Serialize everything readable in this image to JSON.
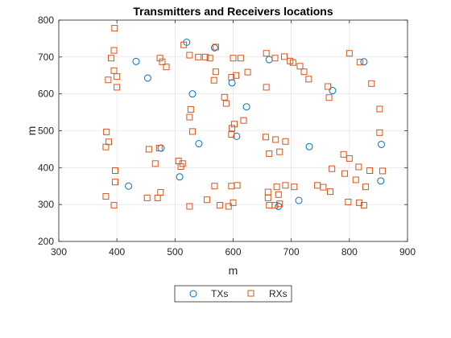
{
  "chart_data": {
    "type": "scatter",
    "title": "Transmitters and Receivers locations",
    "xlabel": "m",
    "ylabel": "m",
    "xlim": [
      300,
      900
    ],
    "ylim": [
      200,
      800
    ],
    "xticks": [
      300,
      400,
      500,
      600,
      700,
      800,
      900
    ],
    "yticks": [
      200,
      300,
      400,
      500,
      600,
      700,
      800
    ],
    "grid": true,
    "legend": {
      "placement": "bottom-center",
      "orientation": "horizontal"
    },
    "series": [
      {
        "name": "TXs",
        "marker": "circle",
        "color": "#0072BD",
        "points": [
          [
            520,
            740
          ],
          [
            568,
            725
          ],
          [
            433,
            688
          ],
          [
            453,
            643
          ],
          [
            530,
            600
          ],
          [
            598,
            630
          ],
          [
            662,
            693
          ],
          [
            825,
            687
          ],
          [
            771,
            609
          ],
          [
            623,
            565
          ],
          [
            606,
            485
          ],
          [
            541,
            465
          ],
          [
            476,
            453
          ],
          [
            731,
            457
          ],
          [
            855,
            463
          ],
          [
            508,
            375
          ],
          [
            420,
            350
          ],
          [
            854,
            364
          ],
          [
            713,
            311
          ],
          [
            678,
            295
          ]
        ]
      },
      {
        "name": "RXs",
        "marker": "square",
        "color": "#D95319",
        "points": [
          [
            396,
            778
          ],
          [
            395,
            718
          ],
          [
            390,
            697
          ],
          [
            395,
            663
          ],
          [
            385,
            638
          ],
          [
            400,
            647
          ],
          [
            400,
            618
          ],
          [
            515,
            733
          ],
          [
            525,
            705
          ],
          [
            540,
            700
          ],
          [
            552,
            700
          ],
          [
            560,
            697
          ],
          [
            570,
            727
          ],
          [
            474,
            697
          ],
          [
            478,
            687
          ],
          [
            485,
            673
          ],
          [
            570,
            660
          ],
          [
            567,
            637
          ],
          [
            597,
            645
          ],
          [
            605,
            650
          ],
          [
            600,
            697
          ],
          [
            613,
            697
          ],
          [
            625,
            659
          ],
          [
            657,
            710
          ],
          [
            672,
            697
          ],
          [
            688,
            701
          ],
          [
            698,
            689
          ],
          [
            703,
            685
          ],
          [
            715,
            675
          ],
          [
            722,
            660
          ],
          [
            730,
            640
          ],
          [
            657,
            618
          ],
          [
            800,
            710
          ],
          [
            818,
            686
          ],
          [
            838,
            628
          ],
          [
            763,
            620
          ],
          [
            765,
            590
          ],
          [
            585,
            591
          ],
          [
            588,
            574
          ],
          [
            527,
            558
          ],
          [
            525,
            537
          ],
          [
            530,
            498
          ],
          [
            602,
            518
          ],
          [
            598,
            507
          ],
          [
            597,
            490
          ],
          [
            618,
            528
          ],
          [
            656,
            483
          ],
          [
            673,
            476
          ],
          [
            690,
            471
          ],
          [
            662,
            438
          ],
          [
            680,
            443
          ],
          [
            382,
            497
          ],
          [
            386,
            470
          ],
          [
            381,
            456
          ],
          [
            473,
            453
          ],
          [
            455,
            450
          ],
          [
            466,
            411
          ],
          [
            506,
            418
          ],
          [
            510,
            403
          ],
          [
            513,
            411
          ],
          [
            770,
            397
          ],
          [
            790,
            436
          ],
          [
            800,
            425
          ],
          [
            792,
            384
          ],
          [
            816,
            402
          ],
          [
            811,
            367
          ],
          [
            835,
            392
          ],
          [
            852,
            495
          ],
          [
            852,
            559
          ],
          [
            857,
            391
          ],
          [
            397,
            392
          ],
          [
            397,
            361
          ],
          [
            381,
            322
          ],
          [
            395,
            298
          ],
          [
            452,
            318
          ],
          [
            470,
            318
          ],
          [
            475,
            333
          ],
          [
            525,
            295
          ],
          [
            555,
            313
          ],
          [
            568,
            350
          ],
          [
            577,
            298
          ],
          [
            592,
            295
          ],
          [
            597,
            350
          ],
          [
            600,
            305
          ],
          [
            607,
            352
          ],
          [
            660,
            334
          ],
          [
            660,
            318
          ],
          [
            662,
            298
          ],
          [
            675,
            348
          ],
          [
            678,
            327
          ],
          [
            672,
            298
          ],
          [
            680,
            302
          ],
          [
            690,
            352
          ],
          [
            705,
            348
          ],
          [
            745,
            352
          ],
          [
            755,
            347
          ],
          [
            767,
            335
          ],
          [
            798,
            307
          ],
          [
            817,
            305
          ],
          [
            825,
            298
          ],
          [
            828,
            348
          ]
        ]
      }
    ]
  }
}
